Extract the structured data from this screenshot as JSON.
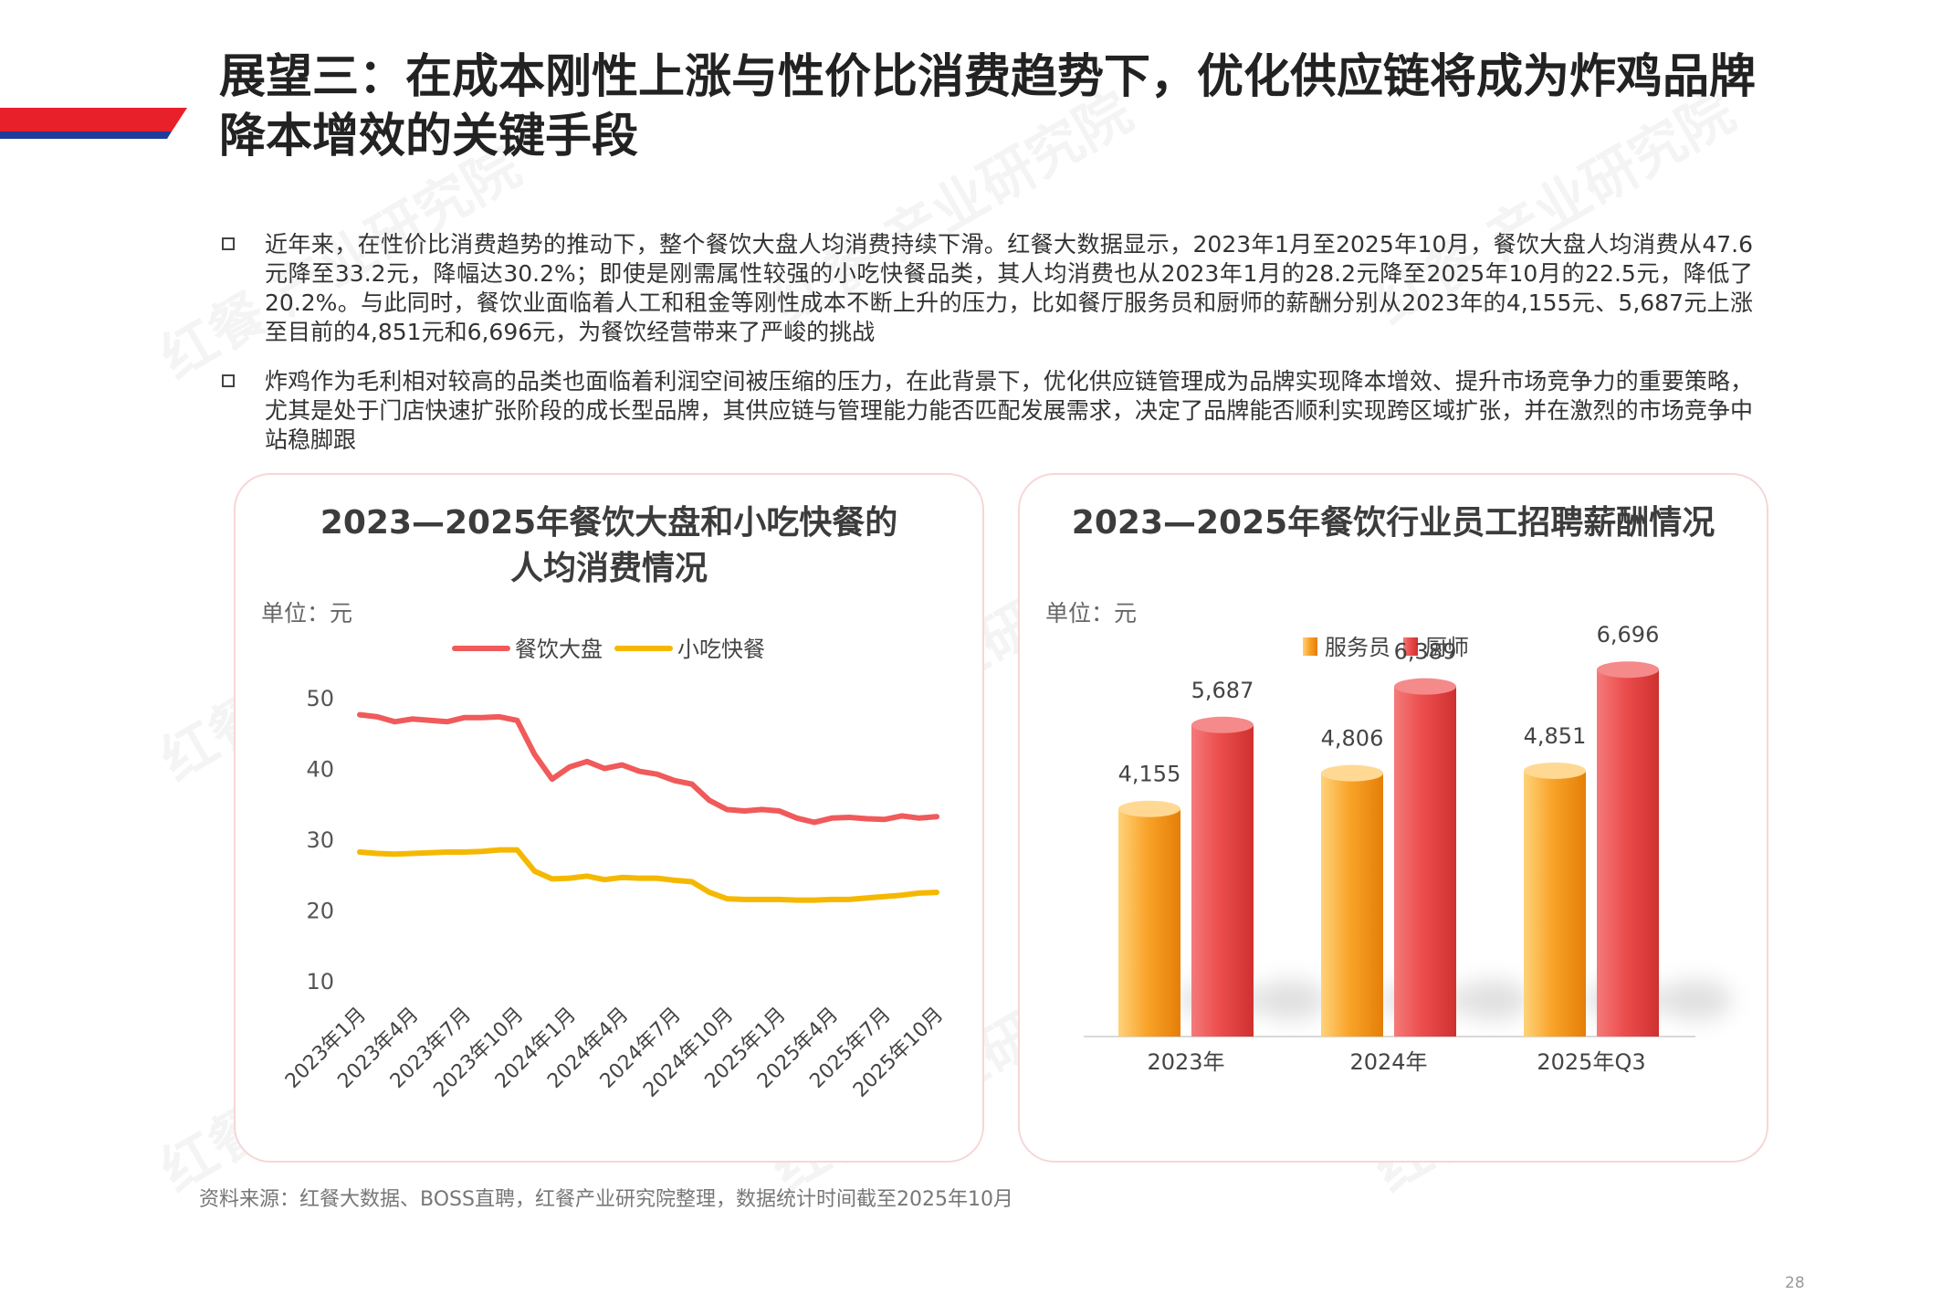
{
  "title": "展望三：在成本刚性上涨与性价比消费趋势下，优化供应链将成为炸鸡品牌降本增效的关键手段",
  "bullets": [
    "近年来，在性价比消费趋势的推动下，整个餐饮大盘人均消费持续下滑。红餐大数据显示，2023年1月至2025年10月，餐饮大盘人均消费从47.6元降至33.2元，降幅达30.2%；即使是刚需属性较强的小吃快餐品类，其人均消费也从2023年1月的28.2元降至2025年10月的22.5元，降低了20.2%。与此同时，餐饮业面临着人工和租金等刚性成本不断上升的压力，比如餐厅服务员和厨师的薪酬分别从2023年的4,155元、5,687元上涨至目前的4,851元和6,696元，为餐饮经营带来了严峻的挑战",
    "炸鸡作为毛利相对较高的品类也面临着利润空间被压缩的压力，在此背景下，优化供应链管理成为品牌实现降本增效、提升市场竞争力的重要策略，尤其是处于门店快速扩张阶段的成长型品牌，其供应链与管理能力能否匹配发展需求，决定了品牌能否顺利实现跨区域扩张，并在激烈的市场竞争中站稳脚跟"
  ],
  "source": "资料来源：红餐大数据、BOSS直聘，红餐产业研究院整理，数据统计时间截至2025年10月",
  "page_number": "28",
  "watermark": "红餐 产业研究院",
  "colors": {
    "red_line": "#f05a5a",
    "yellow_line": "#f5b800",
    "bar_orange": "#f79a1e",
    "bar_red": "#ea4646",
    "header_red": "#e8202a",
    "header_blue": "#1f3c9a"
  },
  "chart_data": [
    {
      "type": "line",
      "title": "2023—2025年餐饮大盘和小吃快餐的人均消费情况",
      "unit": "单位：元",
      "ylim": [
        0,
        50
      ],
      "yticks": [
        10,
        20,
        30,
        40,
        50
      ],
      "tick_labels": [
        "2023年1月",
        "2023年4月",
        "2023年7月",
        "2023年10月",
        "2024年1月",
        "2024年4月",
        "2024年7月",
        "2024年10月",
        "2025年1月",
        "2025年4月",
        "2025年7月",
        "2025年10月"
      ],
      "x_count": 34,
      "tick_step": 3,
      "legend": [
        "餐饮大盘",
        "小吃快餐"
      ],
      "series": [
        {
          "name": "餐饮大盘",
          "values": [
            47.6,
            47.3,
            46.6,
            47.0,
            46.8,
            46.6,
            47.2,
            47.2,
            47.3,
            46.8,
            42.0,
            38.5,
            40.2,
            41.0,
            40.0,
            40.5,
            39.6,
            39.2,
            38.3,
            37.8,
            35.5,
            34.2,
            34.0,
            34.2,
            34.0,
            33.0,
            32.4,
            33.0,
            33.1,
            32.9,
            32.8,
            33.3,
            33.0,
            33.2
          ]
        },
        {
          "name": "小吃快餐",
          "values": [
            28.2,
            28.0,
            27.9,
            28.0,
            28.1,
            28.2,
            28.2,
            28.3,
            28.5,
            28.5,
            25.5,
            24.4,
            24.5,
            24.8,
            24.3,
            24.6,
            24.5,
            24.5,
            24.2,
            24.0,
            22.5,
            21.6,
            21.5,
            21.5,
            21.5,
            21.4,
            21.4,
            21.5,
            21.5,
            21.7,
            21.9,
            22.1,
            22.4,
            22.5
          ]
        }
      ]
    },
    {
      "type": "bar",
      "title": "2023—2025年餐饮行业员工招聘薪酬情况",
      "unit": "单位：元",
      "categories": [
        "2023年",
        "2024年",
        "2025年Q3"
      ],
      "legend": [
        "服务员",
        "厨师"
      ],
      "ylim": [
        0,
        8000
      ],
      "series": [
        {
          "name": "服务员",
          "values": [
            4155,
            4806,
            4851
          ],
          "labels": [
            "4,155",
            "4,806",
            "4,851"
          ]
        },
        {
          "name": "厨师",
          "values": [
            5687,
            6389,
            6696
          ],
          "labels": [
            "5,687",
            "6,389",
            "6,696"
          ]
        }
      ]
    }
  ]
}
